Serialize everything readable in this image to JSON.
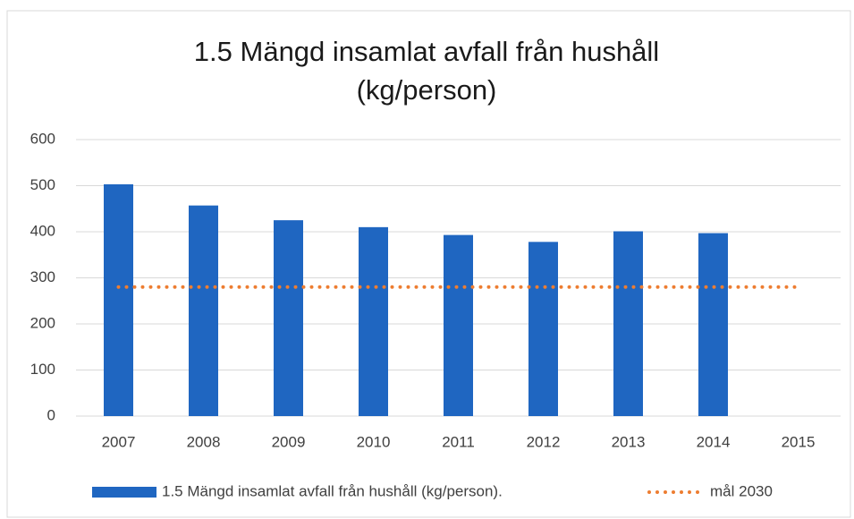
{
  "chart_data": {
    "type": "bar",
    "title": "1.5 Mängd insamlat avfall från hushåll",
    "subtitle": "(kg/person)",
    "categories": [
      "2007",
      "2008",
      "2009",
      "2010",
      "2011",
      "2012",
      "2013",
      "2014",
      "2015"
    ],
    "series": [
      {
        "name": "1.5 Mängd insamlat avfall från hushåll (kg/person).",
        "type": "bar",
        "color": "#1f66c1",
        "values": [
          503,
          457,
          425,
          410,
          393,
          378,
          401,
          397,
          null
        ]
      },
      {
        "name": "mål 2030",
        "type": "line",
        "color": "#ed7d31",
        "values": [
          280,
          280,
          280,
          280,
          280,
          280,
          280,
          280,
          280
        ]
      }
    ],
    "ylim": [
      0,
      600
    ],
    "yticks": [
      0,
      100,
      200,
      300,
      400,
      500,
      600
    ],
    "grid": true,
    "legend": "bottom"
  }
}
